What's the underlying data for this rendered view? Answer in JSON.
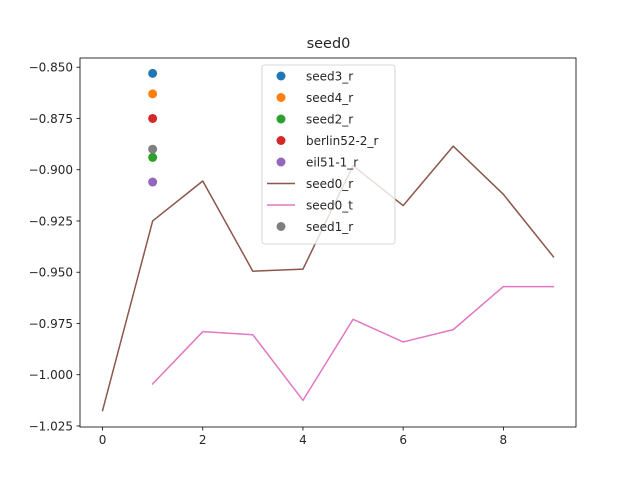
{
  "chart_data": {
    "type": "line",
    "title": "seed0",
    "xlabel": "",
    "ylabel": "",
    "xlim": [
      -0.45,
      9.45
    ],
    "ylim": [
      -1.0255,
      -0.8455
    ],
    "xticks": [
      0,
      2,
      4,
      6,
      8
    ],
    "xtick_labels": [
      "0",
      "2",
      "4",
      "6",
      "8"
    ],
    "yticks": [
      -1.025,
      -1.0,
      -0.975,
      -0.95,
      -0.925,
      -0.9,
      -0.875,
      -0.85
    ],
    "ytick_labels": [
      "−1.025",
      "−1.000",
      "−0.975",
      "−0.950",
      "−0.925",
      "−0.900",
      "−0.875",
      "−0.850"
    ],
    "grid": false,
    "legend_position": "upper center",
    "series": [
      {
        "name": "seed3_r",
        "kind": "scatter",
        "color": "#1f77b4",
        "x": [
          1
        ],
        "y": [
          -0.853
        ]
      },
      {
        "name": "seed4_r",
        "kind": "scatter",
        "color": "#ff7f0e",
        "x": [
          1
        ],
        "y": [
          -0.863
        ]
      },
      {
        "name": "seed2_r",
        "kind": "scatter",
        "color": "#2ca02c",
        "x": [
          1
        ],
        "y": [
          -0.894
        ]
      },
      {
        "name": "berlin52-2_r",
        "kind": "scatter",
        "color": "#d62728",
        "x": [
          1
        ],
        "y": [
          -0.875
        ]
      },
      {
        "name": "eil51-1_r",
        "kind": "scatter",
        "color": "#9467bd",
        "x": [
          1
        ],
        "y": [
          -0.906
        ]
      },
      {
        "name": "seed0_r",
        "kind": "line",
        "color": "#8c564b",
        "x": [
          0,
          1,
          2,
          3,
          4,
          5,
          6,
          7,
          8,
          9
        ],
        "y": [
          -1.0175,
          -0.925,
          -0.9055,
          -0.9495,
          -0.9485,
          -0.898,
          -0.9175,
          -0.8885,
          -0.912,
          -0.9425
        ]
      },
      {
        "name": "seed0_t",
        "kind": "line",
        "color": "#e377c2",
        "x": [
          1,
          2,
          3,
          4,
          5,
          6,
          7,
          8,
          9
        ],
        "y": [
          -1.0045,
          -0.979,
          -0.9805,
          -1.0125,
          -0.973,
          -0.984,
          -0.978,
          -0.957,
          -0.957
        ]
      },
      {
        "name": "seed1_r",
        "kind": "scatter",
        "color": "#7f7f7f",
        "x": [
          1
        ],
        "y": [
          -0.89
        ]
      }
    ]
  }
}
